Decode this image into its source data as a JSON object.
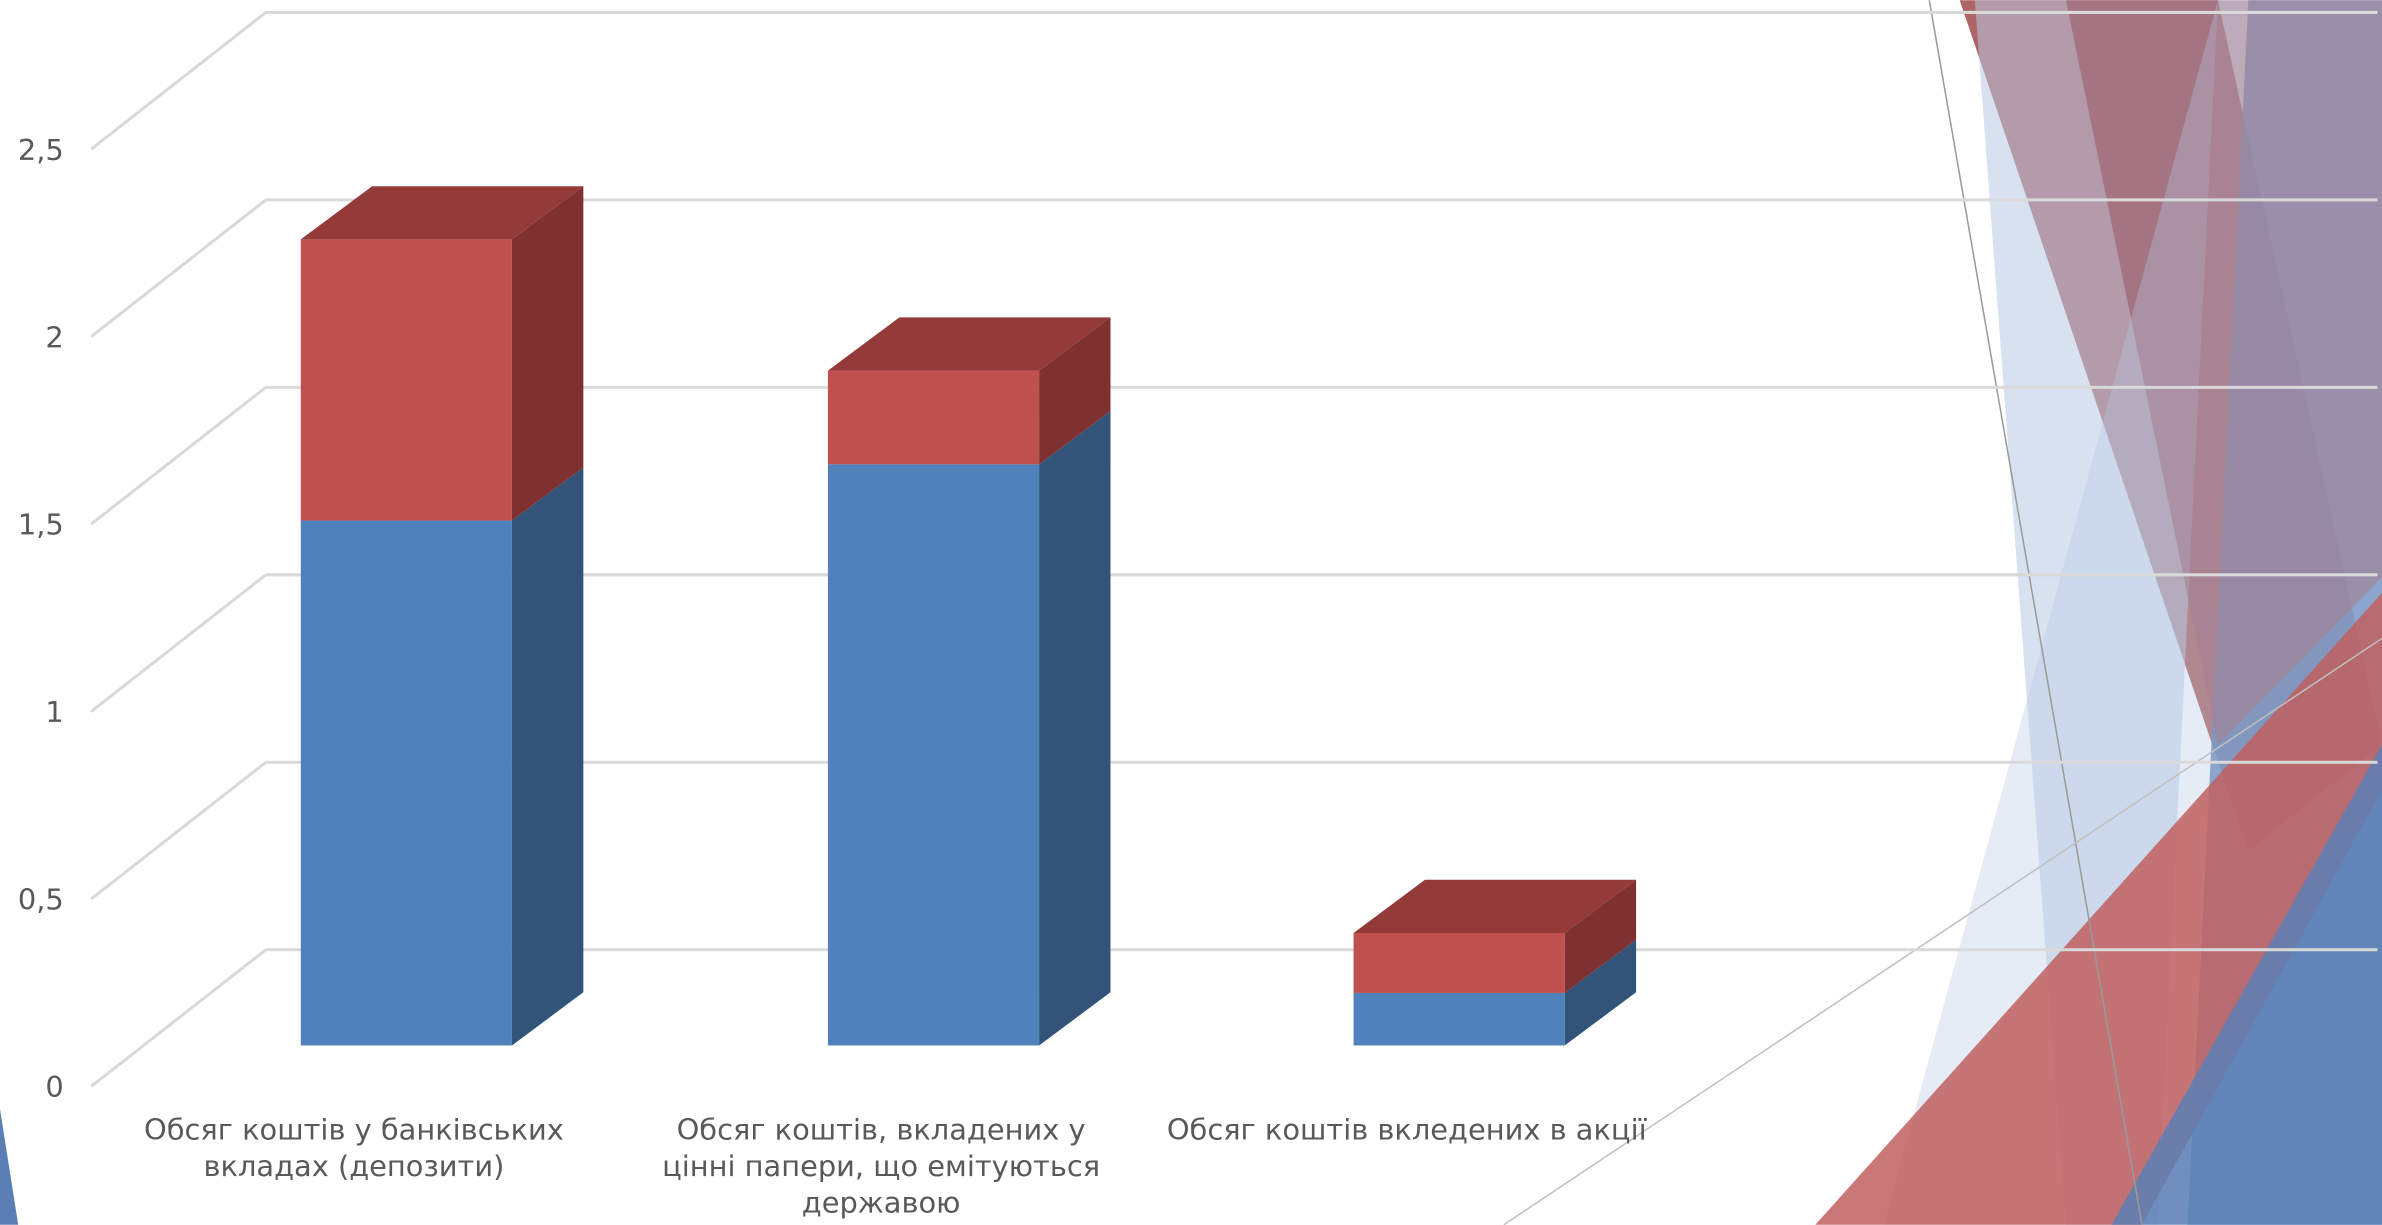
{
  "chart_data": {
    "type": "bar3d_stacked",
    "categories": [
      "Обсяг коштів у банківських вкладах (депозити)",
      "Обсяг коштів, вкладених у цінні папери, що емітуються державою",
      "Обсяг коштів вкледених в акції"
    ],
    "series": [
      {
        "color": "#4f81bd",
        "side_color": "#325479",
        "top_color": "#3f6896",
        "values": [
          1.4,
          1.55,
          0.14
        ]
      },
      {
        "color": "#c0504d",
        "side_color": "#7f3030",
        "top_color": "#943b3a",
        "values": [
          0.75,
          0.25,
          0.16
        ]
      }
    ],
    "ylim": [
      0,
      2.5
    ],
    "yticks": [
      0,
      {
        "value": 0.5,
        "label": "0,5"
      },
      1,
      {
        "value": 1.5,
        "label": "1,5"
      },
      2,
      {
        "value": 2.5,
        "label": "2,5"
      }
    ],
    "grid": true
  }
}
